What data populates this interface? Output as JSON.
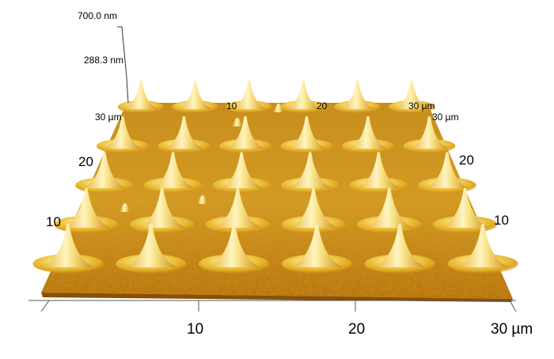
{
  "image": {
    "description_visible_only": true,
    "surface": "afm-topography-3d",
    "colors": {
      "high": "#fff6c8",
      "mid": "#e8b020",
      "low": "#b06a08",
      "shadow": "#7a4400",
      "edge": "#c77a10"
    }
  },
  "z_axis": {
    "max_label": "700.0 nm",
    "mid_label": "288.3 nm"
  },
  "x_axis": {
    "ticks": [
      "10",
      "20",
      "30 µm"
    ]
  },
  "left_axis": {
    "ticks": [
      "10",
      "20",
      "30 µm"
    ]
  },
  "right_axis": {
    "ticks": [
      "10",
      "20",
      "30 µm"
    ]
  },
  "back_axis": {
    "ticks": [
      "10",
      "20",
      "30 µm"
    ]
  },
  "peaks_grid": {
    "rows": 5,
    "cols": 6
  }
}
